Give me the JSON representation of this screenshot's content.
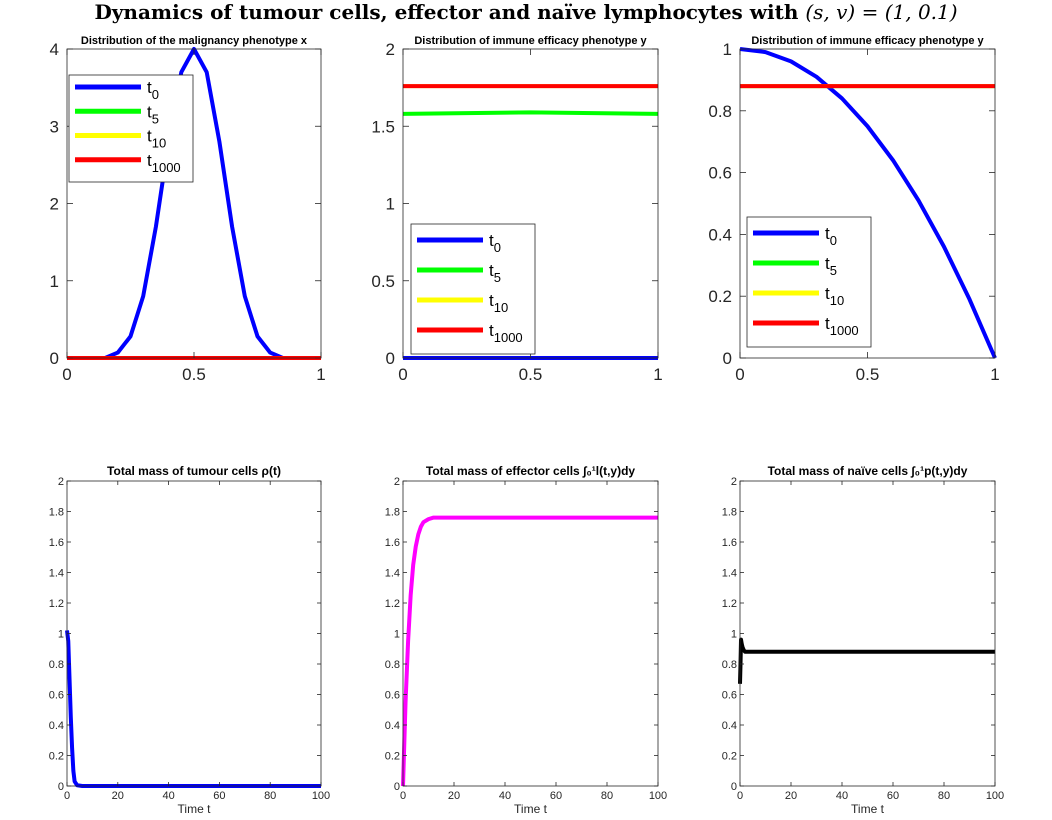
{
  "figure": {
    "title_text": "Dynamics of tumour cells, effector and naïve lymphocytes with",
    "title_math": "(s, v) = (1, 0.1)"
  },
  "chart_data": [
    {
      "type": "line",
      "title": "Distribution of the malignancy phenotype x",
      "xlabel": "",
      "ylabel": "",
      "xlim": [
        0,
        1
      ],
      "ylim": [
        0,
        4
      ],
      "xticks": [
        "0",
        "0.5",
        "1"
      ],
      "yticks": [
        "0",
        "1",
        "2",
        "3",
        "4"
      ],
      "tick_font": "large",
      "legend": {
        "position": "top-left"
      },
      "series": [
        {
          "name": "t_0",
          "color": "#0000ff",
          "x": [
            0,
            0.15,
            0.2,
            0.25,
            0.3,
            0.35,
            0.4,
            0.45,
            0.5,
            0.55,
            0.6,
            0.65,
            0.7,
            0.75,
            0.8,
            0.85,
            1
          ],
          "y": [
            0,
            0,
            0.07,
            0.28,
            0.8,
            1.7,
            2.8,
            3.7,
            4.0,
            3.7,
            2.8,
            1.7,
            0.8,
            0.28,
            0.07,
            0,
            0
          ]
        },
        {
          "name": "t_5",
          "color": "#00ff00",
          "x": [
            0,
            1
          ],
          "y": [
            0,
            0
          ]
        },
        {
          "name": "t_10",
          "color": "#ffff00",
          "x": [
            0,
            1
          ],
          "y": [
            0,
            0
          ]
        },
        {
          "name": "t_1000",
          "color": "#ff0000",
          "x": [
            0,
            1
          ],
          "y": [
            0,
            0
          ]
        }
      ]
    },
    {
      "type": "line",
      "title": "Distribution of immune efficacy phenotype y",
      "xlabel": "",
      "ylabel": "",
      "xlim": [
        0,
        1
      ],
      "ylim": [
        0,
        2
      ],
      "xticks": [
        "0",
        "0.5",
        "1"
      ],
      "yticks": [
        "0",
        "0.5",
        "1",
        "1.5",
        "2"
      ],
      "tick_font": "large",
      "legend": {
        "position": "bottom-left"
      },
      "series": [
        {
          "name": "t_0",
          "color": "#0000ff",
          "x": [
            0,
            1
          ],
          "y": [
            0,
            0
          ]
        },
        {
          "name": "t_5",
          "color": "#00ff00",
          "x": [
            0,
            0.5,
            1
          ],
          "y": [
            1.58,
            1.59,
            1.58
          ]
        },
        {
          "name": "t_10",
          "color": "#ffff00",
          "x": [
            0,
            1
          ],
          "y": [
            1.76,
            1.76
          ]
        },
        {
          "name": "t_1000",
          "color": "#ff0000",
          "x": [
            0,
            1
          ],
          "y": [
            1.76,
            1.76
          ]
        }
      ]
    },
    {
      "type": "line",
      "title": "Distribution of immune efficacy phenotype y",
      "xlabel": "",
      "ylabel": "",
      "xlim": [
        0,
        1
      ],
      "ylim": [
        0,
        1
      ],
      "xticks": [
        "0",
        "0.5",
        "1"
      ],
      "yticks": [
        "0",
        "0.2",
        "0.4",
        "0.6",
        "0.8",
        "1"
      ],
      "tick_font": "large",
      "legend": {
        "position": "bottom-left"
      },
      "series": [
        {
          "name": "t_0",
          "color": "#0000ff",
          "x": [
            0,
            0.1,
            0.2,
            0.3,
            0.4,
            0.5,
            0.6,
            0.7,
            0.8,
            0.9,
            1
          ],
          "y": [
            1,
            0.99,
            0.96,
            0.91,
            0.84,
            0.75,
            0.64,
            0.51,
            0.36,
            0.19,
            0
          ]
        },
        {
          "name": "t_5",
          "color": "#00ff00",
          "x": [
            0,
            1
          ],
          "y": [
            0.88,
            0.88
          ]
        },
        {
          "name": "t_10",
          "color": "#ffff00",
          "x": [
            0,
            1
          ],
          "y": [
            0.88,
            0.88
          ]
        },
        {
          "name": "t_1000",
          "color": "#ff0000",
          "x": [
            0,
            1
          ],
          "y": [
            0.88,
            0.88
          ]
        }
      ]
    },
    {
      "type": "line",
      "title": "Total mass of tumour cells ρ(t)",
      "xlabel": "Time t",
      "ylabel": "",
      "xlim": [
        0,
        100
      ],
      "ylim": [
        0,
        2
      ],
      "xticks": [
        "0",
        "20",
        "40",
        "60",
        "80",
        "100"
      ],
      "yticks": [
        "0",
        "0.2",
        "0.4",
        "0.6",
        "0.8",
        "1",
        "1.2",
        "1.4",
        "1.6",
        "1.8",
        "2"
      ],
      "tick_font": "small",
      "legend": null,
      "series": [
        {
          "color": "#0000ff",
          "x": [
            0,
            0.5,
            1,
            1.5,
            2,
            2.5,
            3,
            4,
            6,
            100
          ],
          "y": [
            1.02,
            0.95,
            0.7,
            0.45,
            0.25,
            0.1,
            0.03,
            0.005,
            0,
            0
          ]
        }
      ]
    },
    {
      "type": "line",
      "title": "Total mass of effector cells ∫₀¹l(t,y)dy",
      "xlabel": "Time t",
      "ylabel": "",
      "xlim": [
        0,
        100
      ],
      "ylim": [
        0,
        2
      ],
      "xticks": [
        "0",
        "20",
        "40",
        "60",
        "80",
        "100"
      ],
      "yticks": [
        "0",
        "0.2",
        "0.4",
        "0.6",
        "0.8",
        "1",
        "1.2",
        "1.4",
        "1.6",
        "1.8",
        "2"
      ],
      "tick_font": "small",
      "legend": null,
      "series": [
        {
          "color": "#ff00ff",
          "x": [
            0,
            1,
            2,
            3,
            4,
            5,
            6,
            7,
            8,
            10,
            12,
            15,
            20,
            100
          ],
          "y": [
            0,
            0.55,
            0.95,
            1.25,
            1.45,
            1.57,
            1.65,
            1.7,
            1.73,
            1.75,
            1.76,
            1.76,
            1.76,
            1.76
          ]
        }
      ]
    },
    {
      "type": "line",
      "title": "Total mass of naïve cells ∫₀¹p(t,y)dy",
      "xlabel": "Time t",
      "ylabel": "",
      "xlim": [
        0,
        100
      ],
      "ylim": [
        0,
        2
      ],
      "xticks": [
        "0",
        "20",
        "40",
        "60",
        "80",
        "100"
      ],
      "yticks": [
        "0",
        "0.2",
        "0.4",
        "0.6",
        "0.8",
        "1",
        "1.2",
        "1.4",
        "1.6",
        "1.8",
        "2"
      ],
      "tick_font": "small",
      "legend": null,
      "series": [
        {
          "color": "#000000",
          "x": [
            0,
            0.2,
            0.4,
            0.7,
            1,
            1.5,
            2,
            3,
            5,
            100
          ],
          "y": [
            0.67,
            0.8,
            0.96,
            0.93,
            0.91,
            0.89,
            0.88,
            0.88,
            0.88,
            0.88
          ]
        }
      ]
    }
  ]
}
